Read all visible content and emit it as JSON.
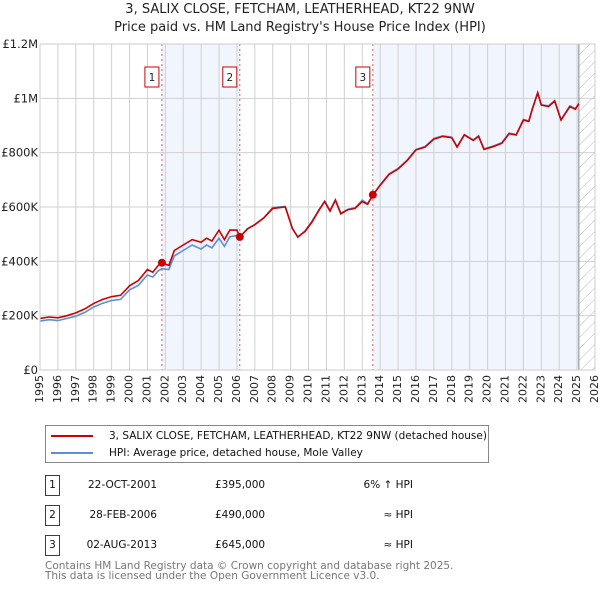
{
  "chart_data": {
    "type": "line",
    "title": "3, SALIX CLOSE, FETCHAM, LEATHERHEAD, KT22 9NW",
    "subtitle": "Price paid vs. HM Land Registry's House Price Index (HPI)",
    "xlim": [
      1995,
      2026
    ],
    "ylim": [
      0,
      1200000
    ],
    "x_ticks": [
      "1995",
      "1996",
      "1997",
      "1998",
      "1999",
      "2000",
      "2001",
      "2002",
      "2003",
      "2004",
      "2005",
      "2006",
      "2007",
      "2008",
      "2009",
      "2010",
      "2011",
      "2012",
      "2013",
      "2014",
      "2015",
      "2016",
      "2017",
      "2018",
      "2019",
      "2020",
      "2021",
      "2022",
      "2023",
      "2024",
      "2025",
      "2026"
    ],
    "y_ticks": [
      {
        "value": 0,
        "label": "£0"
      },
      {
        "value": 200000,
        "label": "£200K"
      },
      {
        "value": 400000,
        "label": "£400K"
      },
      {
        "value": 600000,
        "label": "£600K"
      },
      {
        "value": 800000,
        "label": "£800K"
      },
      {
        "value": 1000000,
        "label": "£1M"
      },
      {
        "value": 1200000,
        "label": "£1.2M"
      }
    ],
    "grid": true,
    "shaded_ranges": [
      [
        2001.81,
        2006.16
      ],
      [
        2013.59,
        2025.1
      ]
    ],
    "hatched_from": 2025.1,
    "series": [
      {
        "name": "3, SALIX CLOSE, FETCHAM, LEATHERHEAD, KT22 9NW (detached house)",
        "color": "#cc0000",
        "x": [
          1995,
          1995.5,
          1996,
          1996.5,
          1997,
          1997.5,
          1998,
          1998.5,
          1999,
          1999.5,
          2000,
          2000.5,
          2001,
          2001.3,
          2001.6,
          2001.81,
          2002.2,
          2002.5,
          2003,
          2003.5,
          2004,
          2004.3,
          2004.6,
          2005,
          2005.3,
          2005.6,
          2006,
          2006.16,
          2006.6,
          2007,
          2007.5,
          2008,
          2008.7,
          2009.1,
          2009.4,
          2009.8,
          2010.2,
          2010.6,
          2010.9,
          2011.2,
          2011.5,
          2011.8,
          2012.2,
          2012.6,
          2013,
          2013.3,
          2013.59,
          2014,
          2014.5,
          2015,
          2015.5,
          2016,
          2016.5,
          2017,
          2017.5,
          2018,
          2018.3,
          2018.7,
          2019.2,
          2019.5,
          2019.8,
          2020.3,
          2020.8,
          2021.2,
          2021.6,
          2022,
          2022.3,
          2022.5,
          2022.8,
          2023,
          2023.4,
          2023.75,
          2024.1,
          2024.6,
          2024.9,
          2025.1
        ],
        "y": [
          190000,
          195000,
          192000,
          200000,
          210000,
          225000,
          245000,
          260000,
          270000,
          275000,
          310000,
          330000,
          370000,
          360000,
          385000,
          395000,
          385000,
          440000,
          460000,
          480000,
          470000,
          485000,
          475000,
          515000,
          480000,
          515000,
          515000,
          490000,
          520000,
          535000,
          560000,
          595000,
          600000,
          520000,
          490000,
          510000,
          545000,
          590000,
          620000,
          585000,
          625000,
          575000,
          590000,
          595000,
          620000,
          610000,
          645000,
          680000,
          720000,
          740000,
          770000,
          810000,
          820000,
          850000,
          860000,
          855000,
          820000,
          865000,
          845000,
          860000,
          812000,
          822000,
          835000,
          870000,
          865000,
          920000,
          915000,
          960000,
          1020000,
          975000,
          970000,
          990000,
          920000,
          970000,
          960000,
          980000
        ]
      },
      {
        "name": "HPI: Average price, detached house, Mole Valley",
        "color": "#5b8fd6",
        "x": [
          1995,
          1995.5,
          1996,
          1996.5,
          1997,
          1997.5,
          1998,
          1998.5,
          1999,
          1999.5,
          2000,
          2000.5,
          2001,
          2001.3,
          2001.6,
          2001.81,
          2002.2,
          2002.5,
          2003,
          2003.5,
          2004,
          2004.3,
          2004.6,
          2005,
          2005.3,
          2005.6,
          2006,
          2006.16,
          2006.6,
          2007,
          2007.5,
          2008,
          2008.7,
          2009.1,
          2009.4,
          2009.8,
          2010.2,
          2010.6,
          2010.9,
          2011.2,
          2011.5,
          2011.8,
          2012.2,
          2012.6,
          2013,
          2013.3,
          2013.59,
          2014,
          2014.5,
          2015,
          2015.5,
          2016,
          2016.5,
          2017,
          2017.5,
          2018,
          2018.3,
          2018.7,
          2019.2,
          2019.5,
          2019.8,
          2020.3,
          2020.8,
          2021.2,
          2021.6,
          2022,
          2022.3,
          2022.5,
          2022.8,
          2023,
          2023.4,
          2023.75,
          2024.1,
          2024.6,
          2024.9,
          2025.1
        ],
        "y": [
          180000,
          185000,
          182000,
          190000,
          198000,
          212000,
          232000,
          246000,
          256000,
          260000,
          295000,
          312000,
          350000,
          342000,
          365000,
          373000,
          370000,
          420000,
          440000,
          460000,
          445000,
          460000,
          450000,
          485000,
          455000,
          490000,
          495000,
          490000,
          520000,
          535000,
          560000,
          598000,
          602000,
          522000,
          488000,
          512000,
          548000,
          592000,
          622000,
          587000,
          627000,
          577000,
          592000,
          597000,
          625000,
          612000,
          642000,
          682000,
          722000,
          742000,
          772000,
          812000,
          822000,
          852000,
          862000,
          857000,
          822000,
          867000,
          847000,
          862000,
          814000,
          824000,
          837000,
          872000,
          867000,
          922000,
          917000,
          962000,
          1022000,
          977000,
          972000,
          992000,
          922000,
          972000,
          962000,
          982000
        ]
      }
    ],
    "sales": [
      {
        "id": "1",
        "year": 2001.81,
        "price": 395000
      },
      {
        "id": "2",
        "year": 2006.16,
        "price": 490000
      },
      {
        "id": "3",
        "year": 2013.59,
        "price": 645000
      }
    ],
    "legend": "below"
  },
  "title_line1": "3, SALIX CLOSE, FETCHAM, LEATHERHEAD, KT22 9NW",
  "title_line2": "Price paid vs. HM Land Registry's House Price Index (HPI)",
  "legend": {
    "property": "3, SALIX CLOSE, FETCHAM, LEATHERHEAD, KT22 9NW (detached house)",
    "hpi": "HPI: Average price, detached house, Mole Valley"
  },
  "transactions": [
    {
      "num": "1",
      "date": "22-OCT-2001",
      "price": "£395,000",
      "hpi": "6% ↑ HPI"
    },
    {
      "num": "2",
      "date": "28-FEB-2006",
      "price": "£490,000",
      "hpi": "≈ HPI"
    },
    {
      "num": "3",
      "date": "02-AUG-2013",
      "price": "£645,000",
      "hpi": "≈ HPI"
    }
  ],
  "footer": {
    "line1": "Contains HM Land Registry data © Crown copyright and database right 2025.",
    "line2": "This data is licensed under the Open Government Licence v3.0."
  }
}
